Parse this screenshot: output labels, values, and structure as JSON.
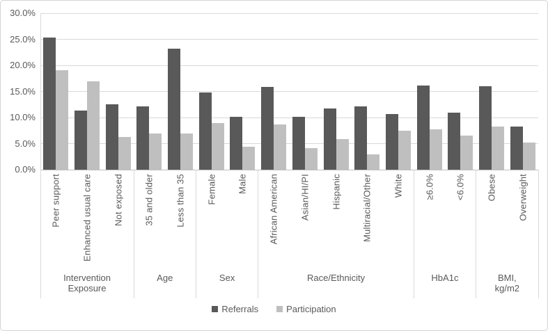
{
  "chart_data": {
    "type": "bar",
    "title": "",
    "xlabel": "",
    "ylabel": "",
    "ylim_percent": [
      0,
      30
    ],
    "grid": true,
    "legend_position": "bottom",
    "y_ticks": [
      {
        "value": 30,
        "label": "30.0%"
      },
      {
        "value": 25,
        "label": "25.0%"
      },
      {
        "value": 20,
        "label": "20.0%"
      },
      {
        "value": 15,
        "label": "15.0%"
      },
      {
        "value": 10,
        "label": "10.0%"
      },
      {
        "value": 5,
        "label": "5.0%"
      },
      {
        "value": 0,
        "label": "0.0%"
      }
    ],
    "groups": [
      {
        "label": "Intervention Exposure",
        "label_lines": [
          "Intervention",
          "Exposure"
        ],
        "categories": [
          "Peer support",
          "Enhanced usual care",
          "Not exposed"
        ]
      },
      {
        "label": "Age",
        "label_lines": [
          "Age"
        ],
        "categories": [
          "35 and older",
          "Less than 35"
        ]
      },
      {
        "label": "Sex",
        "label_lines": [
          "Sex"
        ],
        "categories": [
          "Female",
          "Male"
        ]
      },
      {
        "label": "Race/Ethnicity",
        "label_lines": [
          "Race/Ethnicity"
        ],
        "categories": [
          "African American",
          "Asian/HI/PI",
          "Hispanic",
          "Multiracial/Other",
          "White"
        ]
      },
      {
        "label": "HbA1c",
        "label_lines": [
          "HbA1c"
        ],
        "categories": [
          "≥6.0%",
          "<6.0%"
        ]
      },
      {
        "label": "BMI, kg/m2",
        "label_lines": [
          "BMI,",
          "kg/m2"
        ],
        "categories": [
          "Obese",
          "Overweight"
        ]
      }
    ],
    "series": [
      {
        "name": "Referrals",
        "color": "#595959",
        "values": [
          25.4,
          11.3,
          12.5,
          12.1,
          23.2,
          14.8,
          10.2,
          15.9,
          10.2,
          11.8,
          12.1,
          10.7,
          16.2,
          11.0,
          16.0,
          8.3
        ]
      },
      {
        "name": "Participation",
        "color": "#bfbfbf",
        "values": [
          19.1,
          16.9,
          6.3,
          6.9,
          7.0,
          9.0,
          4.4,
          8.7,
          4.2,
          5.9,
          3.0,
          7.5,
          7.8,
          6.5,
          8.3,
          5.2
        ]
      }
    ],
    "legend": [
      {
        "label": "Referrals",
        "color": "#595959"
      },
      {
        "label": "Participation",
        "color": "#bfbfbf"
      }
    ]
  },
  "colors": {
    "gridline": "#d9d9d9",
    "axis_line": "#bfbfbf",
    "text": "#595959",
    "border": "#d3d3d3",
    "background": "#ffffff"
  }
}
